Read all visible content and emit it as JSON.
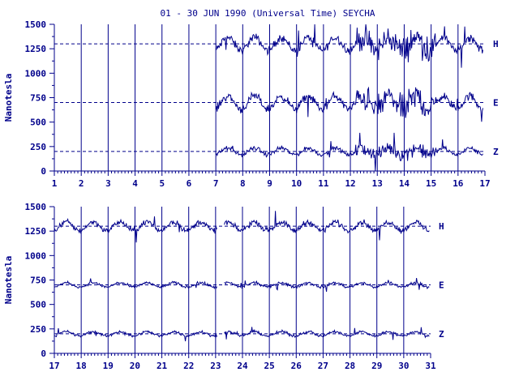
{
  "chart_data": [
    {
      "type": "line",
      "title": "01 - 30 JUN 1990 (Universal Time) SEYCHA",
      "ylabel": "Nanotesla",
      "xlim": [
        1,
        17
      ],
      "ylim": [
        0,
        1500
      ],
      "x_ticks": [
        "1",
        "2",
        "3",
        "4",
        "5",
        "6",
        "7",
        "8",
        "9",
        "10",
        "11",
        "12",
        "13",
        "14",
        "15",
        "16",
        "17"
      ],
      "y_ticks": [
        "0",
        "250",
        "500",
        "750",
        "1000",
        "1250",
        "1500"
      ],
      "data_start_day": 7,
      "series": [
        {
          "name": "H",
          "baseline": 1300,
          "approx_range": [
            900,
            1500
          ]
        },
        {
          "name": "E",
          "baseline": 700,
          "approx_range": [
            300,
            900
          ]
        },
        {
          "name": "Z",
          "baseline": 200,
          "approx_range": [
            0,
            300
          ]
        }
      ]
    },
    {
      "type": "line",
      "ylabel": "Nanotesla",
      "xlim": [
        17,
        31
      ],
      "ylim": [
        0,
        1500
      ],
      "x_ticks": [
        "17",
        "18",
        "19",
        "20",
        "21",
        "22",
        "23",
        "24",
        "25",
        "26",
        "27",
        "28",
        "29",
        "30",
        "31"
      ],
      "y_ticks": [
        "0",
        "250",
        "500",
        "750",
        "1000",
        "1250",
        "1500"
      ],
      "data_gap": [
        23.05,
        23.3
      ],
      "series": [
        {
          "name": "H",
          "baseline": 1300,
          "approx_range": [
            1100,
            1500
          ]
        },
        {
          "name": "E",
          "baseline": 700,
          "approx_range": [
            650,
            850
          ]
        },
        {
          "name": "Z",
          "baseline": 200,
          "approx_range": [
            100,
            300
          ]
        }
      ]
    }
  ],
  "colors": {
    "ink": "#00008b",
    "background": "#ffffff"
  }
}
